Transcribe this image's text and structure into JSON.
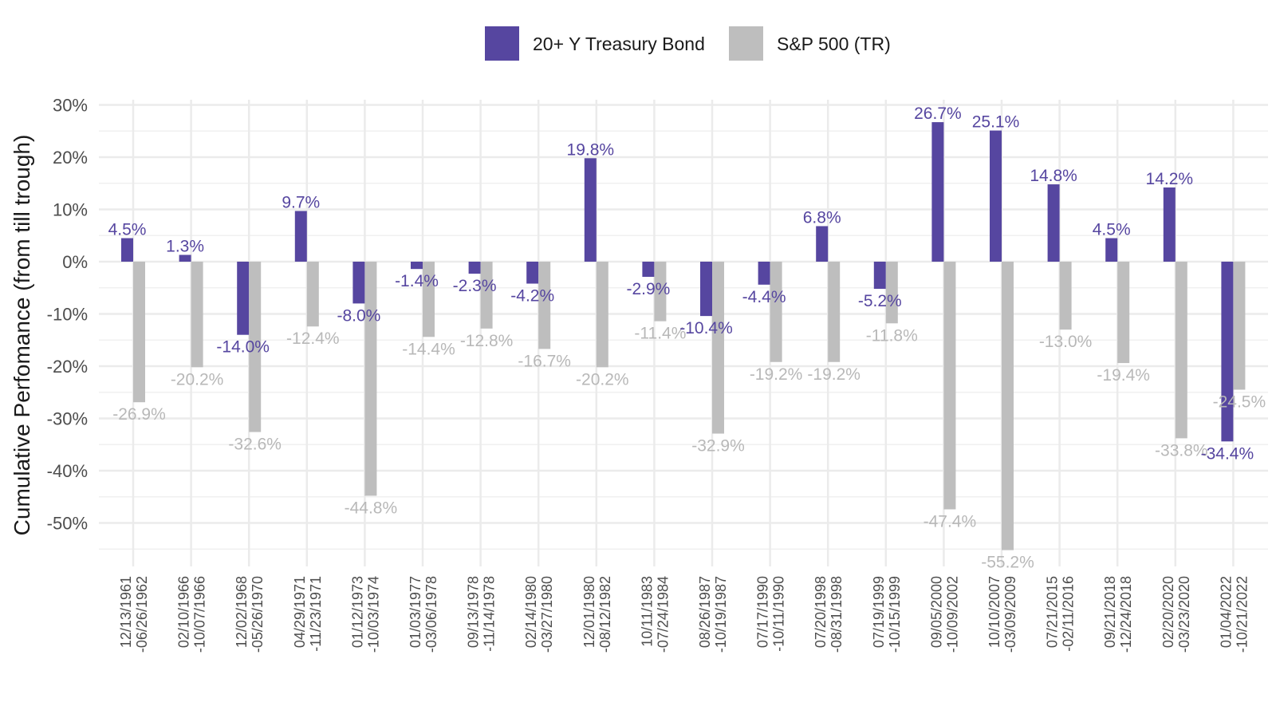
{
  "chart_data": {
    "type": "bar",
    "title": "",
    "xlabel": "",
    "ylabel": "Cumulative Perfomance (from till trough)",
    "ylim": [
      -58,
      31
    ],
    "yticks": [
      30,
      20,
      10,
      0,
      -10,
      -20,
      -30,
      -40,
      -50
    ],
    "ytick_labels": [
      "30%",
      "20%",
      "10%",
      "0%",
      "-10%",
      "-20%",
      "-30%",
      "-40%",
      "-50%"
    ],
    "grid": true,
    "legend_position": "top",
    "categories": [
      [
        "12/13/1961",
        "-06/26/1962"
      ],
      [
        "02/10/1966",
        "-10/07/1966"
      ],
      [
        "12/02/1968",
        "-05/26/1970"
      ],
      [
        "04/29/1971",
        "-11/23/1971"
      ],
      [
        "01/12/1973",
        "-10/03/1974"
      ],
      [
        "01/03/1977",
        "-03/06/1978"
      ],
      [
        "09/13/1978",
        "-11/14/1978"
      ],
      [
        "02/14/1980",
        "-03/27/1980"
      ],
      [
        "12/01/1980",
        "-08/12/1982"
      ],
      [
        "10/11/1983",
        "-07/24/1984"
      ],
      [
        "08/26/1987",
        "-10/19/1987"
      ],
      [
        "07/17/1990",
        "-10/11/1990"
      ],
      [
        "07/20/1998",
        "-08/31/1998"
      ],
      [
        "07/19/1999",
        "-10/15/1999"
      ],
      [
        "09/05/2000",
        "-10/09/2002"
      ],
      [
        "10/10/2007",
        "-03/09/2009"
      ],
      [
        "07/21/2015",
        "-02/11/2016"
      ],
      [
        "09/21/2018",
        "-12/24/2018"
      ],
      [
        "02/20/2020",
        "-03/23/2020"
      ],
      [
        "01/04/2022",
        "-10/21/2022"
      ]
    ],
    "series": [
      {
        "name": "20+ Y Treasury Bond",
        "color": "#5646a0",
        "values": [
          4.5,
          1.3,
          -14.0,
          9.7,
          -8.0,
          -1.4,
          -2.3,
          -4.2,
          19.8,
          -2.9,
          -10.4,
          -4.4,
          6.8,
          -5.2,
          26.7,
          25.1,
          14.8,
          4.5,
          14.2,
          -34.4
        ],
        "labels": [
          "4.5%",
          "1.3%",
          "-14.0%",
          "9.7%",
          "-8.0%",
          "-1.4%",
          "-2.3%",
          "-4.2%",
          "19.8%",
          "-2.9%",
          "-10.4%",
          "-4.4%",
          "6.8%",
          "-5.2%",
          "26.7%",
          "25.1%",
          "14.8%",
          "4.5%",
          "14.2%",
          "-34.4%"
        ]
      },
      {
        "name": "S&P 500 (TR)",
        "color": "#bebebe",
        "values": [
          -26.9,
          -20.2,
          -32.6,
          -12.4,
          -44.8,
          -14.4,
          -12.8,
          -16.7,
          -20.2,
          -11.4,
          -32.9,
          -19.2,
          -19.2,
          -11.8,
          -47.4,
          -55.2,
          -13.0,
          -19.4,
          -33.8,
          -24.5
        ],
        "labels": [
          "-26.9%",
          "-20.2%",
          "-32.6%",
          "-12.4%",
          "-44.8%",
          "-14.4%",
          "-12.8%",
          "-16.7%",
          "-20.2%",
          "-11.4%",
          "-32.9%",
          "-19.2%",
          "-19.2%",
          "-11.8%",
          "-47.4%",
          "-55.2%",
          "-13.0%",
          "-19.4%",
          "-33.8%",
          "-24.5%"
        ]
      }
    ]
  }
}
